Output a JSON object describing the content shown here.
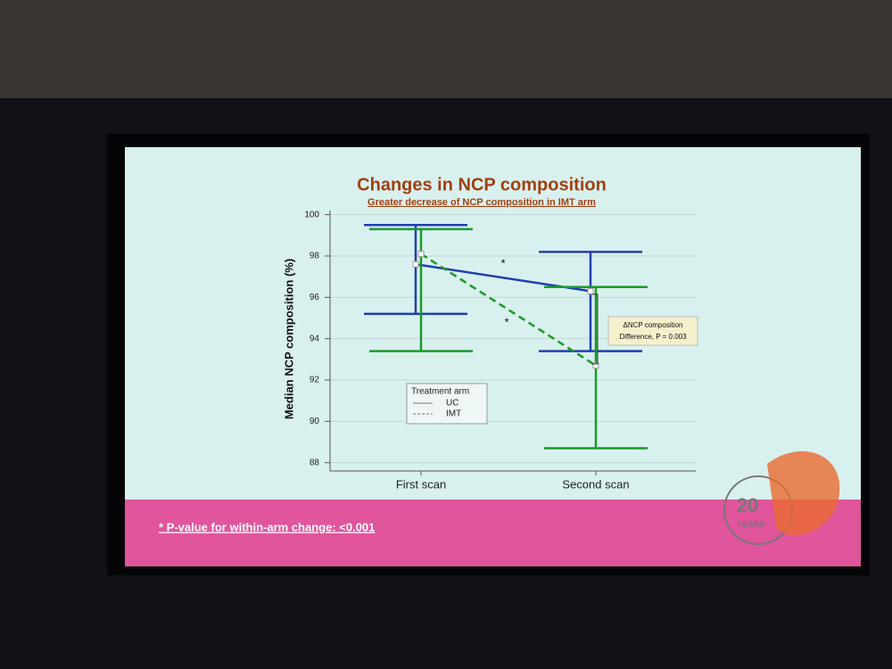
{
  "chart_data": {
    "type": "errorline",
    "title": "Changes in NCP composition",
    "subtitle": "Greater decrease of NCP composition in IMT arm",
    "ylabel": "Median NCP composition (%)",
    "categories": [
      "First scan",
      "Second scan"
    ],
    "ylim": [
      87.6,
      100.2
    ],
    "yticks": [
      88,
      90,
      92,
      94,
      96,
      98,
      100
    ],
    "grid": true,
    "legend_title": "Treatment arm",
    "series": [
      {
        "name": "UC",
        "color": "#1f3fb0",
        "dash": false,
        "values": [
          97.6,
          96.3
        ],
        "low": [
          95.2,
          93.4
        ],
        "high": [
          99.5,
          98.2
        ]
      },
      {
        "name": "IMT",
        "color": "#1a9a2a",
        "dash": true,
        "values": [
          98.1,
          92.7
        ],
        "low": [
          93.4,
          88.7
        ],
        "high": [
          99.3,
          96.5
        ]
      }
    ],
    "annotations": [
      "*",
      "*",
      "ΔNCP composition",
      "Difference, P = 0.003"
    ],
    "footnote": "* P-value for within-arm change: <0.001",
    "logo": [
      "20",
      "YEARS"
    ]
  }
}
